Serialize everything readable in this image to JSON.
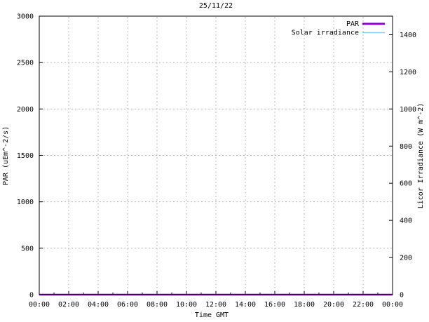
{
  "window": {
    "background": "#ffffff"
  },
  "chart_data": {
    "type": "line",
    "title": "25/11/22",
    "xlabel": "Time GMT",
    "ylabel_left": "PAR (uEm^-2/s)",
    "ylabel_right": "Licor Irradiance (W m^-2)",
    "x_tick_labels": [
      "00:00",
      "02:00",
      "04:00",
      "06:00",
      "08:00",
      "10:00",
      "12:00",
      "14:00",
      "16:00",
      "18:00",
      "20:00",
      "22:00",
      "00:00"
    ],
    "x_major_hours": [
      0,
      2,
      4,
      6,
      8,
      10,
      12,
      14,
      16,
      18,
      20,
      22,
      24
    ],
    "x_minor_hours": [
      1,
      3,
      5,
      7,
      9,
      11,
      13,
      15,
      17,
      19,
      21,
      23
    ],
    "xlim_hours": [
      0,
      24
    ],
    "ylim_left": [
      0,
      3000
    ],
    "y_left_ticks": [
      0,
      500,
      1000,
      1500,
      2000,
      2500,
      3000
    ],
    "ylim_right": [
      0,
      1500
    ],
    "y_right_ticks": [
      0,
      200,
      400,
      600,
      800,
      1000,
      1200,
      1400
    ],
    "grid": true,
    "grid_color": "#b8b8b8",
    "border_color": "#000000",
    "legend_position": "top-right-inside",
    "legend": [
      {
        "label": "PAR",
        "color": "#9400d3",
        "line_width": 3
      },
      {
        "label": "Solar irradiance",
        "color": "#87ceeb",
        "line_width": 1.4
      }
    ],
    "series": [
      {
        "name": "PAR",
        "axis": "left",
        "color": "#9400d3",
        "line_width": 2.5,
        "x_hours": [
          0,
          1,
          2,
          3,
          4,
          5,
          6,
          7,
          8,
          9,
          10,
          11,
          12,
          13,
          14,
          15,
          16,
          17,
          18,
          19,
          20,
          21,
          22,
          23,
          24
        ],
        "values": [
          0,
          0,
          0,
          0,
          0,
          0,
          0,
          0,
          0,
          0,
          0,
          0,
          0,
          0,
          0,
          0,
          0,
          0,
          0,
          0,
          0,
          0,
          0,
          0,
          0
        ]
      },
      {
        "name": "Solar irradiance",
        "axis": "right",
        "color": "#87ceeb",
        "line_width": 1.2,
        "x_hours": [
          0,
          1,
          2,
          3,
          4,
          5,
          6,
          7,
          8,
          9,
          10,
          11,
          12,
          13,
          14,
          15,
          16,
          17,
          18,
          19,
          20,
          21,
          22,
          23,
          24
        ],
        "values": [
          0,
          0,
          0,
          0,
          0,
          0,
          0,
          0,
          0,
          0,
          0,
          0,
          0,
          0,
          0,
          0,
          0,
          0,
          0,
          0,
          0,
          0,
          0,
          0,
          0
        ]
      }
    ]
  }
}
